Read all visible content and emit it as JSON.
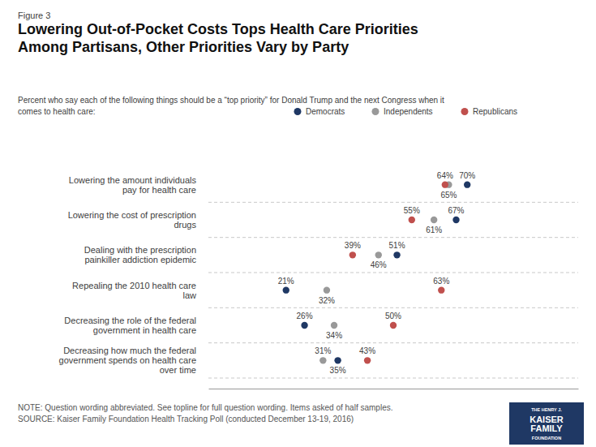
{
  "chart_data": {
    "type": "dot",
    "figure_label": "Figure 3",
    "title": "Lowering Out-of-Pocket Costs Tops Health Care Priorities\nAmong Partisans, Other Priorities Vary by Party",
    "subtitle": "Percent who say each of the following  things should be a “top priority” for Donald Trump and the next Congress when it\ncomes to health care:",
    "note": "NOTE: Question wording abbreviated. See topline for full question wording. Items asked of half samples.\nSOURCE: Kaiser Family Foundation Health Tracking Poll (conducted December 13-19, 2016)",
    "annotations": [
      "THE HENRY J.",
      "KAISER",
      "FAMILY",
      "FOUNDATION"
    ],
    "categories": [
      "Lowering the amount individuals\npay for health care",
      "Lowering the cost of prescription\ndrugs",
      "Dealing with the prescription\npainkiller addiction epidemic",
      "Repealing the 2010 health care\nlaw",
      "Decreasing the role of the federal\ngovernment in health care",
      "Decreasing how much the federal\ngovernment spends on health care\nover time"
    ],
    "series": [
      {
        "name": "Democrats",
        "color": "#1f3864",
        "values": [
          70,
          67,
          51,
          21,
          26,
          35
        ],
        "value_labels": [
          "70%",
          "67%",
          "51%",
          "21%",
          "26%",
          "35%"
        ]
      },
      {
        "name": "Independents",
        "color": "#999999",
        "values": [
          65,
          61,
          46,
          32,
          34,
          31
        ],
        "value_labels": [
          "65%",
          "61%",
          "46%",
          "32%",
          "34%",
          "31%"
        ]
      },
      {
        "name": "Republicans",
        "color": "#c0504d",
        "values": [
          64,
          55,
          39,
          63,
          50,
          43
        ],
        "value_labels": [
          "64%",
          "55%",
          "39%",
          "63%",
          "50%",
          "43%"
        ]
      }
    ],
    "xlim": [
      0,
      100
    ],
    "tick_labels": false,
    "grid": false,
    "legend": "top",
    "data_labels": true
  }
}
